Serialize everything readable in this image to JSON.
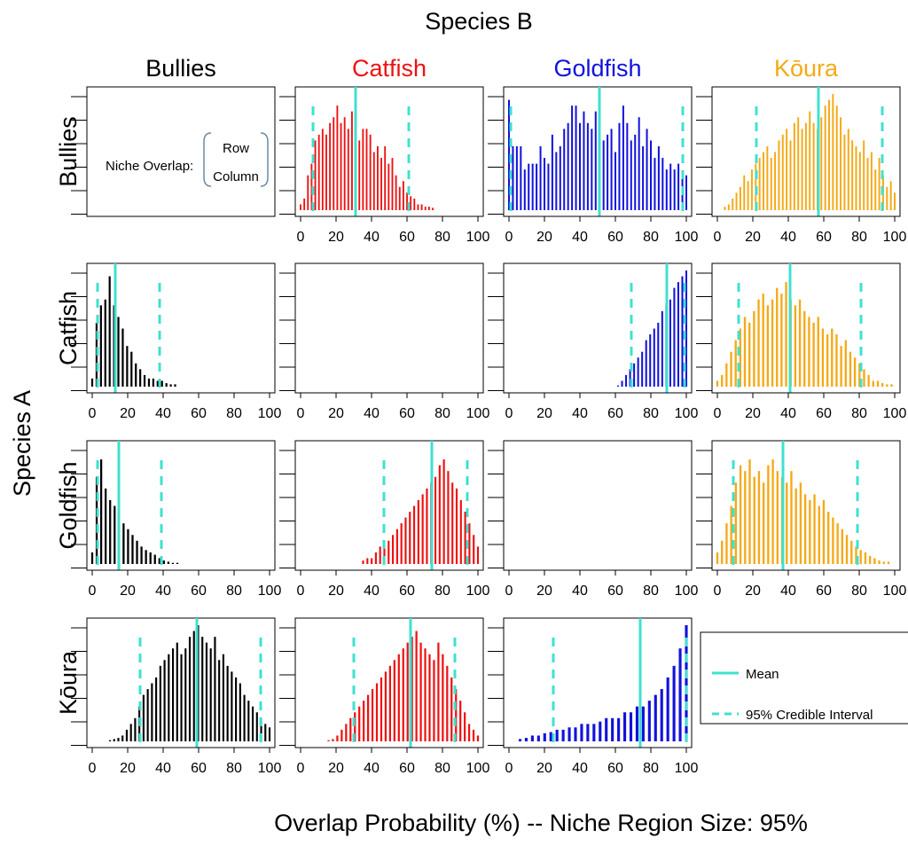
{
  "figure": {
    "top_title": "Species B",
    "left_title": "Species A",
    "bottom_title": "Overlap Probability (%) -- Niche Region Size: 95%"
  },
  "species": [
    "Bullies",
    "Catfish",
    "Goldfish",
    "Kōura"
  ],
  "colors": [
    "#000000",
    "#ee1111",
    "#1111dd",
    "#f5a916"
  ],
  "mean_color": "#40e0d0",
  "x_ticks": [
    0,
    20,
    40,
    60,
    80,
    100
  ],
  "info_panel": {
    "prefix": "Niche Overlap:",
    "top": "Row",
    "bottom": "Column"
  },
  "legend": {
    "mean": "Mean",
    "ci": "95% Credible Interval"
  },
  "chart_data": {
    "type": "bar",
    "description_units": "x = overlap probability (%), bar height = relative frequency (0-1)",
    "xlim": [
      0,
      100
    ],
    "panels": [
      {
        "row": 0,
        "col": 1,
        "mean": 31,
        "ci": [
          7,
          61
        ],
        "heights": [
          0.05,
          0.1,
          0.3,
          0.4,
          0.6,
          0.65,
          0.7,
          0.65,
          0.75,
          0.8,
          0.9,
          0.75,
          0.8,
          0.7,
          0.85,
          0.75,
          0.6,
          0.7,
          0.7,
          0.65,
          0.5,
          0.55,
          0.45,
          0.55,
          0.4,
          0.45,
          0.3,
          0.2,
          0.25,
          0.15,
          0.12,
          0.1,
          0.05,
          0.05,
          0.03,
          0.03,
          0.02
        ]
      },
      {
        "row": 0,
        "col": 2,
        "mean": 51,
        "ci": [
          1,
          98
        ],
        "heights": [
          0.95,
          0.55,
          0.55,
          0.55,
          0.35,
          0.4,
          0.4,
          0.4,
          0.55,
          0.45,
          0.4,
          0.65,
          0.5,
          0.55,
          0.7,
          0.75,
          0.9,
          0.9,
          0.75,
          0.85,
          0.75,
          0.7,
          0.85,
          0.95,
          0.6,
          0.65,
          0.7,
          0.5,
          0.75,
          0.9,
          0.75,
          0.6,
          0.65,
          0.8,
          0.55,
          0.7,
          0.6,
          0.45,
          0.55,
          0.45,
          0.35,
          0.4,
          0.35,
          0.4,
          0.3,
          0.3
        ]
      },
      {
        "row": 0,
        "col": 3,
        "mean": 57,
        "ci": [
          22,
          93
        ],
        "heights": [
          0.03,
          0.05,
          0.1,
          0.15,
          0.2,
          0.3,
          0.25,
          0.35,
          0.4,
          0.45,
          0.5,
          0.55,
          0.45,
          0.5,
          0.6,
          0.65,
          0.7,
          0.6,
          0.75,
          0.8,
          0.7,
          0.75,
          0.85,
          0.75,
          0.7,
          0.8,
          0.9,
          0.95,
          1.0,
          0.9,
          0.8,
          0.65,
          0.7,
          0.6,
          0.55,
          0.5,
          0.6,
          0.45,
          0.5,
          0.35,
          0.45,
          0.3,
          0.2,
          0.25,
          0.15
        ]
      },
      {
        "row": 1,
        "col": 0,
        "mean": 13,
        "ci": [
          3,
          38
        ],
        "heights": [
          0.07,
          0.55,
          0.7,
          0.75,
          0.95,
          0.7,
          0.6,
          0.5,
          0.35,
          0.3,
          0.2,
          0.15,
          0.1,
          0.07,
          0.07,
          0.05,
          0.05,
          0.03,
          0.02,
          0.02
        ]
      },
      {
        "row": 1,
        "col": 2,
        "mean": 89,
        "ci": [
          69,
          99
        ],
        "heights": [
          0.01,
          0.05,
          0.1,
          0.15,
          0.2,
          0.25,
          0.3,
          0.4,
          0.45,
          0.5,
          0.55,
          0.65,
          0.7,
          0.75,
          0.85,
          0.9,
          0.95,
          1.0
        ]
      },
      {
        "row": 1,
        "col": 3,
        "mean": 41,
        "ci": [
          12,
          81
        ],
        "heights": [
          0.05,
          0.1,
          0.2,
          0.3,
          0.4,
          0.5,
          0.6,
          0.55,
          0.65,
          0.75,
          0.8,
          0.7,
          0.75,
          0.85,
          0.8,
          0.9,
          0.75,
          0.7,
          0.75,
          0.65,
          0.6,
          0.55,
          0.6,
          0.5,
          0.45,
          0.5,
          0.45,
          0.35,
          0.4,
          0.3,
          0.25,
          0.2,
          0.15,
          0.1,
          0.05,
          0.05,
          0.03,
          0.02,
          0.02
        ]
      },
      {
        "row": 2,
        "col": 0,
        "mean": 15,
        "ci": [
          3,
          39
        ],
        "heights": [
          0.1,
          0.75,
          0.9,
          0.65,
          0.55,
          0.5,
          0.45,
          0.35,
          0.3,
          0.25,
          0.2,
          0.15,
          0.12,
          0.1,
          0.08,
          0.05,
          0.03,
          0.02,
          0.01,
          0.01
        ]
      },
      {
        "row": 2,
        "col": 1,
        "mean": 74,
        "ci": [
          47,
          94
        ],
        "heights": [
          0.03,
          0.05,
          0.05,
          0.1,
          0.15,
          0.15,
          0.2,
          0.25,
          0.3,
          0.35,
          0.4,
          0.45,
          0.5,
          0.55,
          0.6,
          0.65,
          0.7,
          0.75,
          0.85,
          0.9,
          0.8,
          0.7,
          0.65,
          0.55,
          0.45,
          0.35,
          0.25,
          0.15
        ]
      },
      {
        "row": 2,
        "col": 3,
        "mean": 37,
        "ci": [
          9,
          79
        ],
        "heights": [
          0.1,
          0.2,
          0.35,
          0.5,
          0.7,
          0.85,
          0.8,
          0.9,
          0.75,
          0.8,
          0.7,
          0.85,
          0.9,
          0.8,
          0.75,
          0.7,
          0.8,
          0.65,
          0.7,
          0.6,
          0.55,
          0.6,
          0.5,
          0.55,
          0.45,
          0.4,
          0.35,
          0.3,
          0.25,
          0.2,
          0.15,
          0.12,
          0.1,
          0.07,
          0.05,
          0.03,
          0.02,
          0.02
        ]
      },
      {
        "row": 3,
        "col": 0,
        "mean": 59,
        "ci": [
          27,
          95
        ],
        "heights": [
          0.01,
          0.02,
          0.03,
          0.05,
          0.1,
          0.15,
          0.2,
          0.3,
          0.4,
          0.45,
          0.5,
          0.55,
          0.65,
          0.7,
          0.75,
          0.8,
          0.85,
          0.75,
          0.8,
          0.9,
          0.95,
          1.0,
          0.9,
          0.85,
          0.8,
          0.9,
          0.7,
          0.75,
          0.65,
          0.6,
          0.55,
          0.5,
          0.4,
          0.35,
          0.3,
          0.25,
          0.2,
          0.15,
          0.12
        ]
      },
      {
        "row": 3,
        "col": 1,
        "mean": 62,
        "ci": [
          30,
          87
        ],
        "heights": [
          0.01,
          0.02,
          0.05,
          0.1,
          0.15,
          0.2,
          0.25,
          0.3,
          0.35,
          0.4,
          0.45,
          0.5,
          0.55,
          0.6,
          0.65,
          0.7,
          0.75,
          0.8,
          0.85,
          0.9,
          0.95,
          0.85,
          0.8,
          0.75,
          0.7,
          0.85,
          0.75,
          0.65,
          0.55,
          0.45,
          0.35,
          0.25,
          0.15,
          0.1,
          0.05
        ]
      },
      {
        "row": 3,
        "col": 2,
        "mean": 74,
        "ci": [
          25,
          100
        ],
        "heights": [
          0.02,
          0.03,
          0.05,
          0.05,
          0.07,
          0.08,
          0.1,
          0.1,
          0.12,
          0.12,
          0.15,
          0.15,
          0.15,
          0.17,
          0.2,
          0.2,
          0.2,
          0.25,
          0.25,
          0.3,
          0.3,
          0.35,
          0.4,
          0.45,
          0.55,
          0.65,
          0.8,
          1.0
        ]
      }
    ]
  }
}
